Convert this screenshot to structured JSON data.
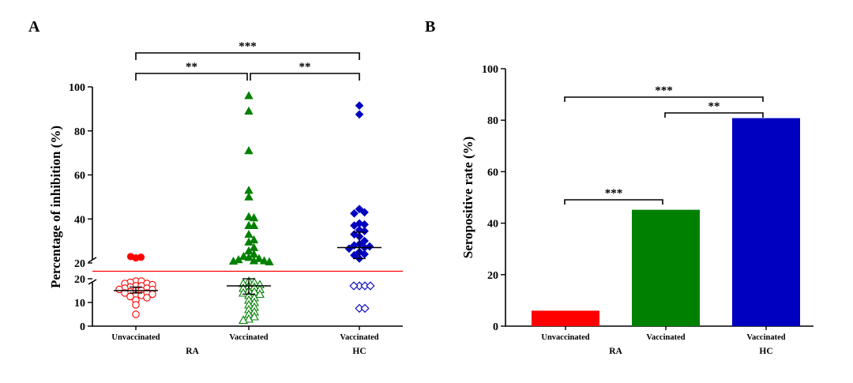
{
  "chart_data": [
    {
      "panel": "A",
      "type": "scatter",
      "ylabel": "Percentage of inhibition (%)",
      "categories": [
        "Unvaccinated",
        "Vaccinated",
        "Vaccinated"
      ],
      "groups": [
        {
          "label": "RA",
          "span": [
            0,
            1
          ]
        },
        {
          "label": "HC",
          "span": [
            2,
            2
          ]
        }
      ],
      "y_axis": {
        "broken": true,
        "lower_range": [
          0,
          20
        ],
        "lower_ticks": [
          0,
          10,
          20
        ],
        "upper_range": [
          20,
          100
        ],
        "upper_ticks": [
          20,
          40,
          60,
          80,
          100
        ]
      },
      "cutoff": 20,
      "series": [
        {
          "group": "Unvaccinated",
          "color": "#ff0000",
          "marker": "circle",
          "filled": [
            22.3,
            22.6,
            22.9
          ],
          "open": [
            19,
            19,
            18.5,
            18,
            18,
            17.5,
            17,
            17,
            16.5,
            16,
            16,
            15.5,
            15.5,
            15,
            15,
            14.5,
            14,
            14,
            13.5,
            13,
            13,
            12.5,
            12,
            11,
            9,
            5
          ],
          "median": 15,
          "ci": [
            14,
            16.5
          ]
        },
        {
          "group": "Vaccinated",
          "color": "#008000",
          "marker": "triangle",
          "filled": [
            96,
            89,
            71,
            53,
            50,
            41,
            40.5,
            37,
            37,
            33,
            30.5,
            29.5,
            27,
            25.5,
            24,
            23,
            22.5,
            22,
            21.5,
            21,
            21,
            20.8,
            20.5
          ],
          "open": [
            19,
            18.5,
            18,
            17.5,
            17,
            16.5,
            16,
            15.5,
            15,
            14.5,
            14,
            13.5,
            13,
            12,
            11,
            10,
            9,
            8,
            7,
            6,
            5,
            4,
            3,
            2.5
          ],
          "median": 17,
          "ci": [
            13.5,
            20
          ]
        },
        {
          "group": "Vaccinated HC",
          "color": "#0000c0",
          "marker": "diamond",
          "filled": [
            91.5,
            87.5,
            44.5,
            43,
            42.5,
            38,
            37.5,
            37,
            35,
            34.5,
            33,
            32,
            30,
            28.5,
            28,
            27.5,
            27,
            26.5,
            25,
            24,
            23.5,
            22
          ],
          "open": [
            17,
            17,
            17,
            17,
            7.5,
            7.5
          ],
          "median": 27,
          "ci": [
            22,
            34
          ]
        }
      ],
      "significance": [
        {
          "from": 0,
          "to": 2,
          "label": "***"
        },
        {
          "from": 0,
          "to": 1,
          "label": "**"
        },
        {
          "from": 1,
          "to": 2,
          "label": "**"
        }
      ]
    },
    {
      "panel": "B",
      "type": "bar",
      "ylabel": "Seropositive rate (%)",
      "categories": [
        "Unvaccinated",
        "Vaccinated",
        "Vaccinated"
      ],
      "groups": [
        {
          "label": "RA",
          "span": [
            0,
            1
          ]
        },
        {
          "label": "HC",
          "span": [
            2,
            2
          ]
        }
      ],
      "values": [
        6,
        45.2,
        80.8
      ],
      "colors": [
        "#ff0000",
        "#008000",
        "#0000c0"
      ],
      "ylim": [
        0,
        100
      ],
      "yticks": [
        0,
        20,
        40,
        60,
        80,
        100
      ],
      "significance": [
        {
          "from": 0,
          "to": 2,
          "label": "***"
        },
        {
          "from": 1,
          "to": 2,
          "label": "**"
        },
        {
          "from": 0,
          "to": 1,
          "label": "***"
        }
      ]
    }
  ]
}
